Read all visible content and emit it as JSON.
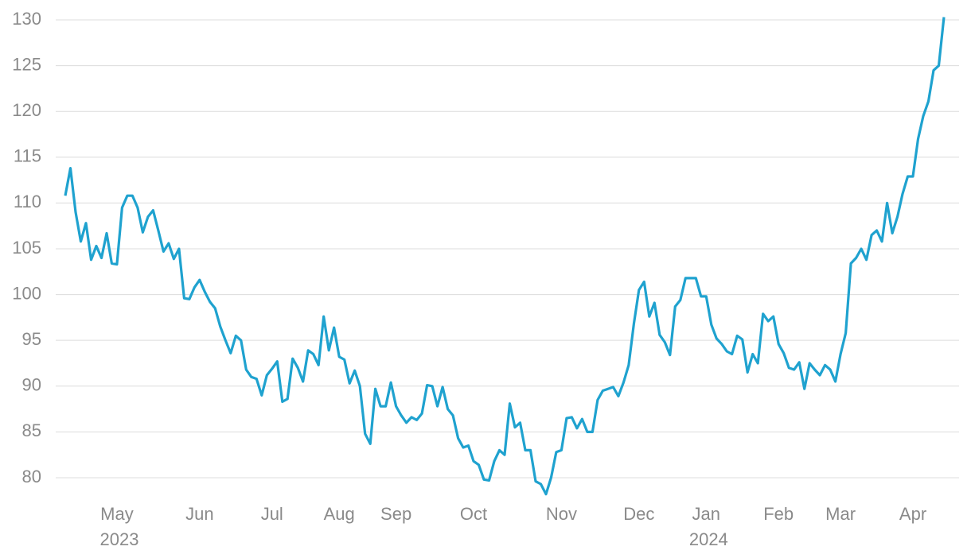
{
  "chart_data": {
    "type": "line",
    "categories": [
      null,
      null,
      null,
      null,
      null,
      null,
      null,
      null,
      null,
      null,
      "May 2023",
      null,
      null,
      null,
      null,
      null,
      null,
      null,
      null,
      null,
      null,
      null,
      null,
      null,
      null,
      null,
      "Jun",
      null,
      null,
      null,
      null,
      null,
      null,
      null,
      null,
      null,
      null,
      null,
      null,
      null,
      "Jul",
      null,
      null,
      null,
      null,
      null,
      null,
      null,
      null,
      null,
      null,
      null,
      null,
      "Aug",
      null,
      null,
      null,
      null,
      null,
      null,
      null,
      null,
      null,
      null,
      "Sep",
      null,
      null,
      null,
      null,
      null,
      null,
      null,
      null,
      null,
      null,
      null,
      null,
      null,
      null,
      "Oct",
      null,
      null,
      null,
      null,
      null,
      null,
      null,
      null,
      null,
      null,
      null,
      null,
      null,
      null,
      null,
      null,
      "Nov",
      null,
      null,
      null,
      null,
      null,
      null,
      null,
      null,
      null,
      null,
      null,
      null,
      null,
      null,
      "Dec",
      null,
      null,
      null,
      null,
      null,
      null,
      null,
      null,
      null,
      null,
      null,
      null,
      "Jan 2024",
      null,
      null,
      null,
      null,
      null,
      null,
      null,
      null,
      null,
      null,
      null,
      null,
      null,
      "Feb",
      null,
      null,
      null,
      null,
      null,
      null,
      null,
      null,
      null,
      null,
      null,
      "Mar",
      null,
      null,
      null,
      null,
      null,
      null,
      null,
      null,
      null,
      null,
      null,
      null,
      null,
      "Apr",
      null,
      null,
      null,
      null,
      null,
      null
    ],
    "series": [
      {
        "color": "#1fa2cf",
        "values": [
          110.8,
          113.8,
          109,
          105.8,
          107.8,
          103.8,
          105.3,
          104,
          106.7,
          103.4,
          103.3,
          109.5,
          110.8,
          110.8,
          109.5,
          106.8,
          108.5,
          109.2,
          107,
          104.7,
          105.6,
          103.9,
          105,
          99.6,
          99.5,
          100.8,
          101.6,
          100.3,
          99.2,
          98.5,
          96.5,
          95,
          93.6,
          95.5,
          95,
          91.8,
          91,
          90.8,
          89,
          91.2,
          91.9,
          92.7,
          88.3,
          88.6,
          93,
          92,
          90.5,
          93.9,
          93.5,
          92.3,
          97.6,
          93.9,
          96.4,
          93.2,
          92.9,
          90.3,
          91.7,
          90,
          84.8,
          83.7,
          89.7,
          87.8,
          87.8,
          90.4,
          87.8,
          86.8,
          86,
          86.6,
          86.3,
          87,
          90.1,
          90,
          87.8,
          89.9,
          87.5,
          86.8,
          84.3,
          83.3,
          83.5,
          81.8,
          81.4,
          79.8,
          79.7,
          81.8,
          83,
          82.5,
          88.1,
          85.5,
          86,
          83,
          83,
          79.6,
          79.3,
          78.2,
          80,
          82.8,
          83,
          86.5,
          86.6,
          85.4,
          86.4,
          85,
          85,
          88.5,
          89.5,
          89.7,
          89.9,
          88.9,
          90.4,
          92.3,
          96.8,
          100.5,
          101.4,
          97.6,
          99.1,
          95.6,
          94.8,
          93.4,
          98.7,
          99.4,
          101.8,
          101.8,
          101.8,
          99.8,
          99.8,
          96.7,
          95.2,
          94.6,
          93.8,
          93.5,
          95.5,
          95.1,
          91.5,
          93.5,
          92.5,
          97.9,
          97.1,
          97.6,
          94.6,
          93.6,
          92,
          91.8,
          92.6,
          89.7,
          92.5,
          91.8,
          91.2,
          92.3,
          91.8,
          90.5,
          93.5,
          95.8,
          103.4,
          104,
          105,
          103.8,
          106.5,
          107,
          105.8,
          110,
          106.7,
          108.5,
          111,
          112.9,
          112.9,
          117,
          119.5,
          121.1,
          124.5,
          125,
          130.3
        ]
      }
    ],
    "ylim": [
      78,
      131
    ],
    "yticks": [
      80,
      85,
      90,
      95,
      100,
      105,
      110,
      115,
      120,
      125,
      130
    ],
    "grid": true
  }
}
